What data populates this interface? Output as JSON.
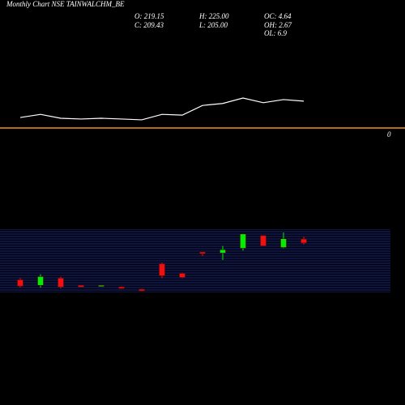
{
  "chart_data": [
    {
      "type": "line",
      "categories": [
        null,
        null,
        null,
        null,
        null,
        null,
        null,
        null,
        null,
        null,
        null,
        null,
        null,
        null,
        null
      ],
      "values": [
        27,
        35,
        25,
        23,
        25,
        23,
        21,
        35,
        33,
        58,
        63,
        77,
        65,
        73,
        69
      ],
      "color": "#ffffff",
      "ylim": [
        0,
        100
      ],
      "yticks": [
        0
      ],
      "ref_color": "#f0901c"
    },
    {
      "type": "candlestick",
      "title": "Monthly Chart NSE TAINWALCHM_BE",
      "annotations": [
        "O: 219.15",
        "C: 209.43",
        "H: 225.00",
        "L: 205.00",
        "OC: 4.64",
        "OH: 2.67",
        "OL: 6.9"
      ],
      "categories": [
        null,
        null,
        null,
        null,
        null,
        null,
        null,
        null,
        null,
        null,
        null,
        null,
        null,
        null,
        null
      ],
      "open": [
        116,
        102,
        120,
        102,
        100,
        98,
        92,
        156,
        132,
        186,
        184,
        196,
        228,
        198,
        219.15
      ],
      "high": [
        120,
        130,
        124,
        103,
        102,
        99,
        93,
        160,
        134,
        186,
        202,
        232,
        228,
        236,
        225
      ],
      "low": [
        96,
        96,
        94,
        97,
        100,
        93,
        87,
        120,
        120,
        176,
        166,
        190,
        202,
        196,
        205
      ],
      "close": [
        100,
        124,
        98,
        98,
        102,
        94,
        88,
        126,
        122,
        182,
        192,
        232,
        202,
        220,
        209.43
      ],
      "up_color": "#00ee00",
      "down_color": "#ee1111",
      "ylim": [
        86,
        240
      ]
    }
  ]
}
